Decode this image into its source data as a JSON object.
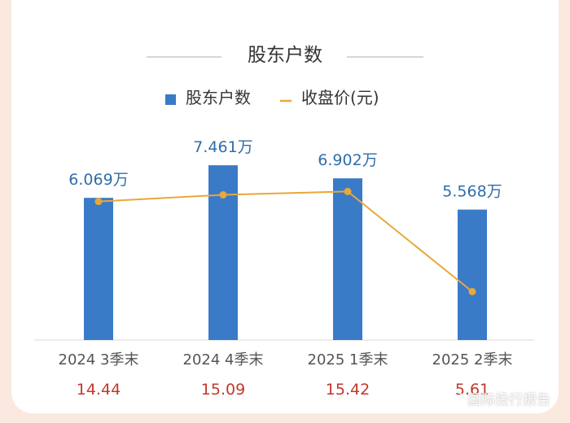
{
  "chart_data": {
    "type": "bar",
    "title": "股东户数",
    "categories": [
      "2024 3季末",
      "2024 4季末",
      "2025 1季末",
      "2025 2季末"
    ],
    "series": [
      {
        "name": "股东户数",
        "type": "bar",
        "values": [
          6.069,
          7.461,
          6.902,
          5.568
        ],
        "labels": [
          "6.069万",
          "7.461万",
          "6.902万",
          "5.568万"
        ]
      },
      {
        "name": "收盘价(元)",
        "type": "line",
        "values": [
          14.44,
          15.09,
          15.42,
          5.61
        ],
        "labels": [
          "14.44",
          "15.09",
          "15.42",
          "5.61"
        ]
      }
    ],
    "legend_position": "top-center",
    "grid": false
  },
  "colors": {
    "bar": "#3a7bc8",
    "line": "#e8a838",
    "bar_label": "#2f6eab",
    "price_label": "#c0392b",
    "category_label": "#555555",
    "title": "#333333"
  },
  "watermark": {
    "text": "国际投行报告",
    "icon": "weibo-icon"
  }
}
